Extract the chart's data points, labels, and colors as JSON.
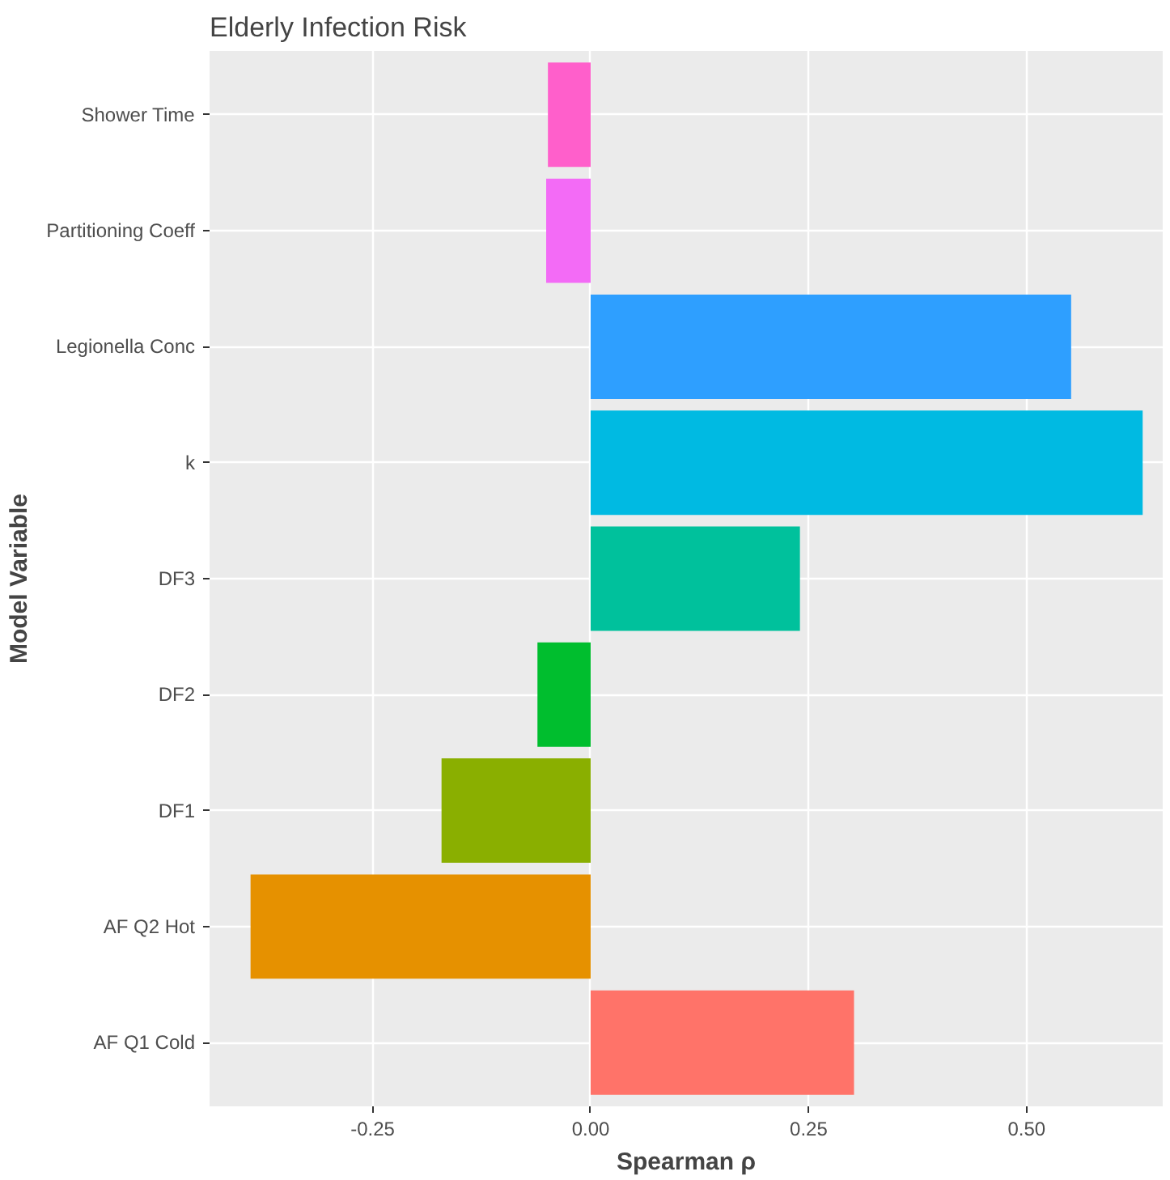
{
  "chart_data": {
    "type": "bar",
    "orientation": "horizontal",
    "title": "Elderly Infection Risk",
    "xlabel": "Spearman ρ",
    "ylabel": "Model Variable",
    "categories": [
      "Shower Time",
      "Partitioning Coeff",
      "Legionella Conc",
      "k",
      "DF3",
      "DF2",
      "DF1",
      "AF Q2 Hot",
      "AF Q1 Cold"
    ],
    "values": [
      -0.049,
      -0.051,
      0.551,
      0.633,
      0.24,
      -0.061,
      -0.171,
      -0.39,
      0.302
    ],
    "colors": [
      "#FF5FCB",
      "#F36BF6",
      "#2E9FFF",
      "#00BAE2",
      "#00C19C",
      "#00BE2E",
      "#8AAF00",
      "#E69100",
      "#FF7369"
    ],
    "xlim": [
      -0.437,
      0.656
    ],
    "xticks": [
      {
        "value": -0.25,
        "label": "-0.25"
      },
      {
        "value": 0,
        "label": "0.00"
      },
      {
        "value": 0.25,
        "label": "0.25"
      },
      {
        "value": 0.5,
        "label": "0.50"
      }
    ],
    "grid": true,
    "legend": false
  }
}
